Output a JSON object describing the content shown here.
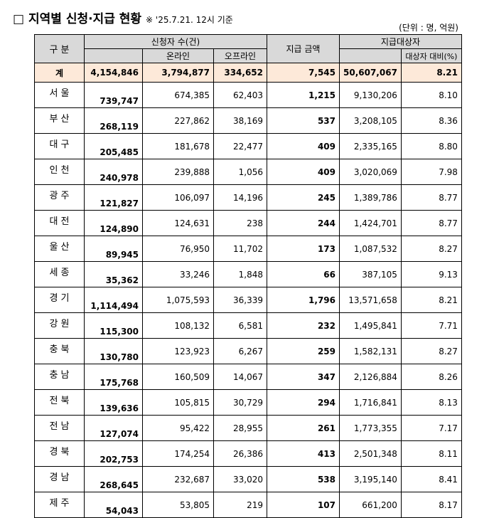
{
  "header": {
    "title": "□ 지역별 신청·지급 현황",
    "note": "※ '25.7.21. 12시 기준",
    "unit": "(단위 : 명, 억원)"
  },
  "table": {
    "head": {
      "region": "구 분",
      "applicants": "신청자 수(건)",
      "online": "온라인",
      "offline": "오프라인",
      "amount": "지급 금액",
      "targets": "지급대상자",
      "ratio": "대상자 대비(%)"
    },
    "total": [
      "계",
      "4,154,846",
      "3,794,877",
      "334,652",
      "7,545",
      "50,607,067",
      "8.21"
    ],
    "rows": [
      [
        "서 울",
        "739,747",
        "674,385",
        "62,403",
        "1,215",
        "9,130,206",
        "8.10"
      ],
      [
        "부 산",
        "268,119",
        "227,862",
        "38,169",
        "537",
        "3,208,105",
        "8.36"
      ],
      [
        "대 구",
        "205,485",
        "181,678",
        "22,477",
        "409",
        "2,335,165",
        "8.80"
      ],
      [
        "인 천",
        "240,978",
        "239,888",
        "1,056",
        "409",
        "3,020,069",
        "7.98"
      ],
      [
        "광 주",
        "121,827",
        "106,097",
        "14,196",
        "245",
        "1,389,786",
        "8.77"
      ],
      [
        "대 전",
        "124,890",
        "124,631",
        "238",
        "244",
        "1,424,701",
        "8.77"
      ],
      [
        "울 산",
        "89,945",
        "76,950",
        "11,702",
        "173",
        "1,087,532",
        "8.27"
      ],
      [
        "세 종",
        "35,362",
        "33,246",
        "1,848",
        "66",
        "387,105",
        "9.13"
      ],
      [
        "경 기",
        "1,114,494",
        "1,075,593",
        "36,339",
        "1,796",
        "13,571,658",
        "8.21"
      ],
      [
        "강 원",
        "115,300",
        "108,132",
        "6,581",
        "232",
        "1,495,841",
        "7.71"
      ],
      [
        "충 북",
        "130,780",
        "123,923",
        "6,267",
        "259",
        "1,582,131",
        "8.27"
      ],
      [
        "충 남",
        "175,768",
        "160,509",
        "14,067",
        "347",
        "2,126,884",
        "8.26"
      ],
      [
        "전 북",
        "139,636",
        "105,815",
        "30,729",
        "294",
        "1,716,841",
        "8.13"
      ],
      [
        "전 남",
        "127,074",
        "95,422",
        "28,955",
        "261",
        "1,773,355",
        "7.17"
      ],
      [
        "경 북",
        "202,753",
        "174,254",
        "26,386",
        "413",
        "2,501,348",
        "8.11"
      ],
      [
        "경 남",
        "268,645",
        "232,687",
        "33,020",
        "538",
        "3,195,140",
        "8.41"
      ],
      [
        "제 주",
        "54,043",
        "53,805",
        "219",
        "107",
        "661,200",
        "8.17"
      ]
    ]
  }
}
